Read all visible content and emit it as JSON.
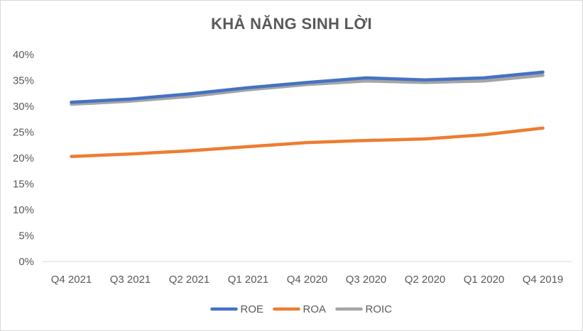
{
  "chart_data": {
    "type": "line",
    "title": "KHẢ NĂNG SINH LỜI",
    "xlabel": "",
    "ylabel": "",
    "categories": [
      "Q4 2021",
      "Q3 2021",
      "Q2 2021",
      "Q1 2021",
      "Q4 2020",
      "Q3 2020",
      "Q2 2020",
      "Q1 2020",
      "Q4 2019"
    ],
    "y_ticks": [
      "0%",
      "5%",
      "10%",
      "15%",
      "20%",
      "25%",
      "30%",
      "35%",
      "40%"
    ],
    "ylim": [
      0,
      40
    ],
    "grid": false,
    "legend_position": "bottom",
    "series": [
      {
        "name": "ROE",
        "color": "#4472c4",
        "values": [
          30.8,
          31.4,
          32.4,
          33.6,
          34.6,
          35.5,
          35.1,
          35.5,
          36.6
        ]
      },
      {
        "name": "ROA",
        "color": "#ed7d31",
        "values": [
          20.3,
          20.8,
          21.4,
          22.2,
          23.0,
          23.4,
          23.7,
          24.5,
          25.8
        ]
      },
      {
        "name": "ROIC",
        "color": "#a5a5a5",
        "values": [
          30.4,
          31.0,
          31.9,
          33.2,
          34.2,
          34.9,
          34.6,
          34.9,
          36.0
        ]
      }
    ]
  }
}
